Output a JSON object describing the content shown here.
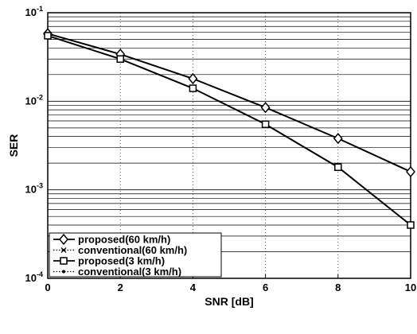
{
  "chart_data": {
    "type": "line",
    "xlabel": "SNR [dB]",
    "ylabel": "SER",
    "xlim": [
      0,
      10
    ],
    "ylim": [
      0.0001,
      0.1
    ],
    "yscale": "log",
    "grid": true,
    "legend_position": "bottom-left",
    "x_ticks": [
      "0",
      "2",
      "4",
      "6",
      "8",
      "10"
    ],
    "y_ticks": [
      {
        "value": 0.1,
        "base": "10",
        "exp": "-1"
      },
      {
        "value": 0.01,
        "base": "10",
        "exp": "-2"
      },
      {
        "value": 0.001,
        "base": "10",
        "exp": "-3"
      },
      {
        "value": 0.0001,
        "base": "10",
        "exp": "-4"
      }
    ],
    "series": [
      {
        "name": "proposed(60 km/h)",
        "marker": "diamond",
        "line": "solid",
        "x": [
          0,
          2,
          4,
          6,
          8,
          10
        ],
        "y": [
          0.058,
          0.034,
          0.018,
          0.0085,
          0.0038,
          0.0016
        ]
      },
      {
        "name": "conventional(60 km/h)",
        "marker": "x",
        "line": "dotted",
        "x": [
          0,
          2,
          4,
          6,
          8,
          10
        ],
        "y": [
          0.058,
          0.034,
          0.018,
          0.0085,
          0.0038,
          0.0016
        ]
      },
      {
        "name": "proposed(3 km/h)",
        "marker": "square",
        "line": "solid",
        "x": [
          0,
          2,
          4,
          6,
          8,
          10
        ],
        "y": [
          0.055,
          0.03,
          0.014,
          0.0055,
          0.0018,
          0.0004
        ]
      },
      {
        "name": "conventional(3 km/h)",
        "marker": "dot",
        "line": "dotted",
        "x": [
          0,
          2,
          4,
          6,
          8,
          10
        ],
        "y": [
          0.055,
          0.03,
          0.014,
          0.0055,
          0.0018,
          0.0004
        ]
      }
    ]
  }
}
